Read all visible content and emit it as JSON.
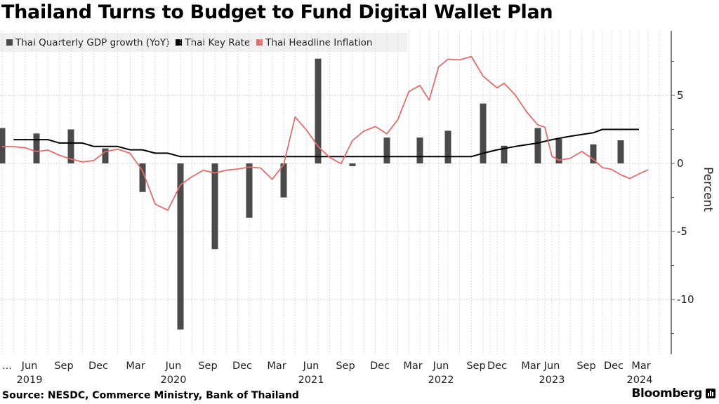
{
  "title": "Thailand Turns to Budget to Fund Digital Wallet Plan",
  "legend": [
    {
      "label": "Thai Quarterly GDP growth (YoY)",
      "color": "#4a4a4a"
    },
    {
      "label": "Thai Key Rate",
      "color": "#000000"
    },
    {
      "label": "Thai Headline Inflation",
      "color": "#e86b6b"
    }
  ],
  "source": "Source: NESDC, Commerce Ministry, Bank of Thailand",
  "brand": "Bloomberg",
  "chart_data": {
    "type": "bar+line",
    "title": "Thailand Turns to Budget to Fund Digital Wallet Plan",
    "xlabel": "",
    "ylabel": "Percent",
    "ylim": [
      -14,
      9.5
    ],
    "yticks": [
      5,
      0,
      -5,
      -10
    ],
    "grid": true,
    "legend_position": "top-left",
    "x_tick_labels": [
      {
        "label": "...",
        "month": 0
      },
      {
        "label": "Jun",
        "month": 3,
        "year": "2019"
      },
      {
        "label": "Sep",
        "month": 6
      },
      {
        "label": "Dec",
        "month": 9
      },
      {
        "label": "Mar",
        "month": 12
      },
      {
        "label": "Jun",
        "month": 15,
        "year": "2020"
      },
      {
        "label": "Sep",
        "month": 18
      },
      {
        "label": "Dec",
        "month": 21
      },
      {
        "label": "Mar",
        "month": 24
      },
      {
        "label": "Jun",
        "month": 27,
        "year": "2021"
      },
      {
        "label": "Sep",
        "month": 30
      },
      {
        "label": "Dec",
        "month": 33
      },
      {
        "label": "Mar",
        "month": 36
      },
      {
        "label": "Jun",
        "month": 39,
        "year": "2022"
      },
      {
        "label": "Sep",
        "month": 42
      },
      {
        "label": "Dec",
        "month": 45
      },
      {
        "label": "Mar",
        "month": 48
      },
      {
        "label": "Jun",
        "month": 51,
        "year": "2023"
      },
      {
        "label": "Sep",
        "month": 54
      },
      {
        "label": "Dec",
        "month": 57
      },
      {
        "label": "Mar",
        "month": 60,
        "year": "2024"
      }
    ],
    "series": [
      {
        "name": "Thai Quarterly GDP growth (YoY)",
        "type": "bar",
        "color": "#4a4a4a",
        "points": [
          {
            "month": 0,
            "value": 2.6
          },
          {
            "month": 3,
            "value": 2.2
          },
          {
            "month": 6,
            "value": 2.5
          },
          {
            "month": 9,
            "value": 1.1
          },
          {
            "month": 12,
            "value": -2.1
          },
          {
            "month": 15,
            "value": -12.2
          },
          {
            "month": 18,
            "value": -6.3
          },
          {
            "month": 21,
            "value": -4.0
          },
          {
            "month": 24,
            "value": -2.5
          },
          {
            "month": 27,
            "value": 7.7
          },
          {
            "month": 30,
            "value": -0.2
          },
          {
            "month": 33,
            "value": 1.9
          },
          {
            "month": 36,
            "value": 1.9
          },
          {
            "month": 39,
            "value": 2.4
          },
          {
            "month": 42,
            "value": 4.4
          },
          {
            "month": 45,
            "value": 1.3
          },
          {
            "month": 48,
            "value": 2.6
          },
          {
            "month": 51,
            "value": 1.8
          },
          {
            "month": 54,
            "value": 1.4
          },
          {
            "month": 57,
            "value": 1.7
          }
        ]
      },
      {
        "name": "Thai Key Rate",
        "type": "line",
        "color": "#000000",
        "points": [
          {
            "month": 1,
            "value": 1.75
          },
          {
            "month": 3,
            "value": 1.75
          },
          {
            "month": 4,
            "value": 1.75
          },
          {
            "month": 5,
            "value": 1.5
          },
          {
            "month": 7,
            "value": 1.5
          },
          {
            "month": 8,
            "value": 1.25
          },
          {
            "month": 10,
            "value": 1.25
          },
          {
            "month": 11,
            "value": 1.0
          },
          {
            "month": 12,
            "value": 1.0
          },
          {
            "month": 13,
            "value": 0.75
          },
          {
            "month": 14,
            "value": 0.75
          },
          {
            "month": 15,
            "value": 0.5
          },
          {
            "month": 41,
            "value": 0.5
          },
          {
            "month": 42,
            "value": 0.75
          },
          {
            "month": 44,
            "value": 1.0
          },
          {
            "month": 46,
            "value": 1.25
          },
          {
            "month": 48,
            "value": 1.5
          },
          {
            "month": 50,
            "value": 1.75
          },
          {
            "month": 52,
            "value": 2.0
          },
          {
            "month": 54,
            "value": 2.25
          },
          {
            "month": 55,
            "value": 2.5
          },
          {
            "month": 59,
            "value": 2.5
          }
        ]
      },
      {
        "name": "Thai Headline Inflation",
        "type": "line",
        "color": "#e86b6b",
        "points": [
          {
            "month": 0,
            "value": 1.24
          },
          {
            "month": 1,
            "value": 1.23
          },
          {
            "month": 2,
            "value": 1.15
          },
          {
            "month": 3,
            "value": 0.87
          },
          {
            "month": 4,
            "value": 0.98
          },
          {
            "month": 5,
            "value": 0.6
          },
          {
            "month": 6,
            "value": 0.32
          },
          {
            "month": 7,
            "value": 0.11
          },
          {
            "month": 8,
            "value": 0.21
          },
          {
            "month": 9,
            "value": 0.87
          },
          {
            "month": 10,
            "value": 1.05
          },
          {
            "month": 11,
            "value": 0.74
          },
          {
            "month": 12,
            "value": -0.54
          },
          {
            "month": 13,
            "value": -2.99
          },
          {
            "month": 14,
            "value": -3.44
          },
          {
            "month": 15,
            "value": -1.57
          },
          {
            "month": 16,
            "value": -0.98
          },
          {
            "month": 17,
            "value": -0.5
          },
          {
            "month": 18,
            "value": -0.7
          },
          {
            "month": 19,
            "value": -0.5
          },
          {
            "month": 20,
            "value": -0.41
          },
          {
            "month": 21,
            "value": -0.27
          },
          {
            "month": 22,
            "value": -0.34
          },
          {
            "month": 23,
            "value": -1.17
          },
          {
            "month": 24,
            "value": -0.08
          },
          {
            "month": 25,
            "value": 3.41
          },
          {
            "month": 26,
            "value": 2.44
          },
          {
            "month": 27,
            "value": 1.25
          },
          {
            "month": 28,
            "value": 0.45
          },
          {
            "month": 29,
            "value": -0.02
          },
          {
            "month": 30,
            "value": 1.68
          },
          {
            "month": 31,
            "value": 2.38
          },
          {
            "month": 32,
            "value": 2.71
          },
          {
            "month": 33,
            "value": 2.17
          },
          {
            "month": 34,
            "value": 3.23
          },
          {
            "month": 35,
            "value": 5.28
          },
          {
            "month": 36,
            "value": 5.73
          },
          {
            "month": 37,
            "value": 4.65
          },
          {
            "month": 38,
            "value": 7.1
          },
          {
            "month": 39,
            "value": 7.66
          },
          {
            "month": 40,
            "value": 7.61
          },
          {
            "month": 41,
            "value": 7.86
          },
          {
            "month": 42,
            "value": 6.41
          },
          {
            "month": 43,
            "value": 5.98
          },
          {
            "month": 44,
            "value": 5.55
          },
          {
            "month": 45,
            "value": 5.89
          },
          {
            "month": 46,
            "value": 5.02
          },
          {
            "month": 47,
            "value": 3.79
          },
          {
            "month": 48,
            "value": 2.83
          },
          {
            "month": 49,
            "value": 2.67
          },
          {
            "month": 50,
            "value": 0.53
          },
          {
            "month": 51,
            "value": 0.23
          },
          {
            "month": 52,
            "value": 0.38
          },
          {
            "month": 53,
            "value": 0.88
          },
          {
            "month": 54,
            "value": 0.3
          },
          {
            "month": 55,
            "value": -0.31
          },
          {
            "month": 56,
            "value": -0.44
          },
          {
            "month": 57,
            "value": -0.83
          },
          {
            "month": 58,
            "value": -1.11
          },
          {
            "month": 59,
            "value": -0.77
          },
          {
            "month": 60,
            "value": -0.47
          }
        ]
      }
    ]
  }
}
